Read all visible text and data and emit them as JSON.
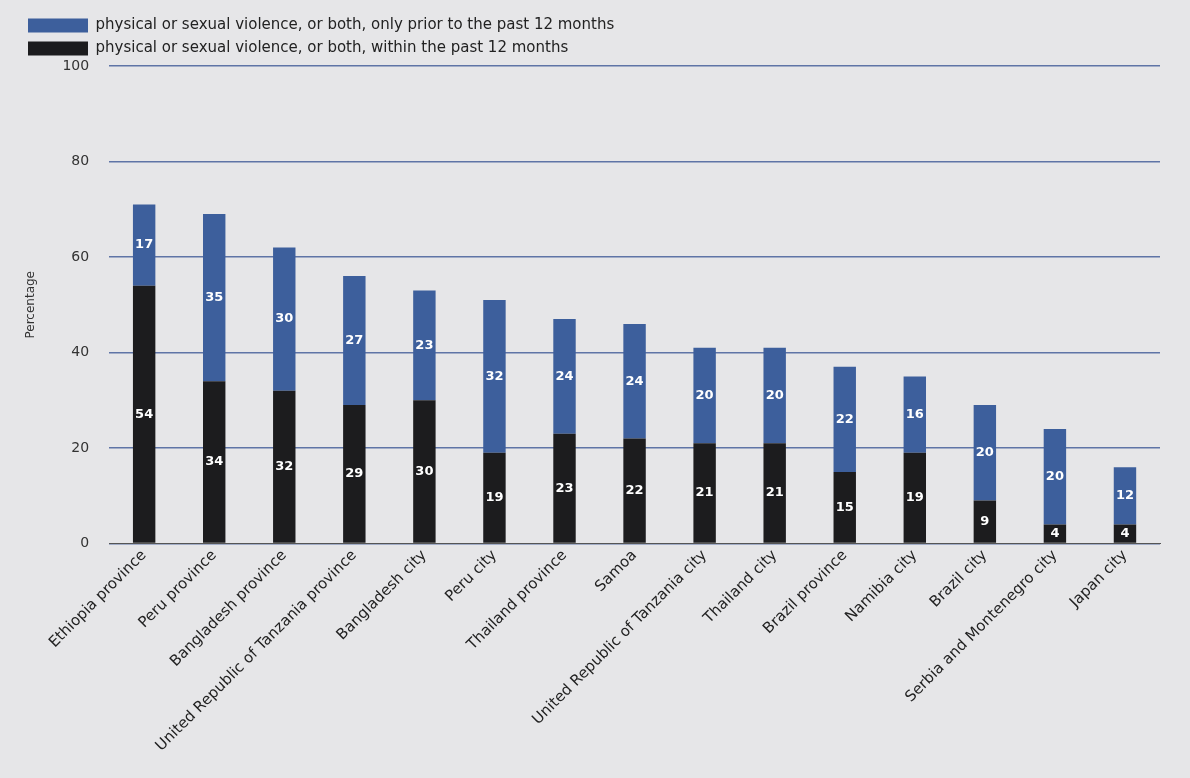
{
  "chart_data": {
    "type": "bar",
    "stacked": true,
    "ylabel": "Percentage",
    "categories": [
      "Ethiopia province",
      "Peru province",
      "Bangladesh province",
      "United Republic of Tanzania province",
      "Bangladesh city",
      "Peru city",
      "Thailand province",
      "Samoa",
      "United Republic of Tanzania city",
      "Thailand city",
      "Brazil province",
      "Namibia city",
      "Brazil city",
      "Serbia and Montenegro city",
      "Japan city"
    ],
    "series": [
      {
        "name": "physical or sexual violence, or both, within the past 12 months",
        "color": "#1c1c1e",
        "values": [
          54,
          34,
          32,
          29,
          30,
          19,
          23,
          22,
          21,
          21,
          15,
          19,
          9,
          4,
          4
        ]
      },
      {
        "name": "physical or sexual violence, or both, only prior to the past 12 months",
        "color": "#3d5f9c",
        "values": [
          17,
          35,
          30,
          27,
          23,
          32,
          24,
          24,
          20,
          20,
          22,
          16,
          20,
          20,
          12
        ]
      }
    ],
    "ylim": [
      0,
      100
    ],
    "yticks": [
      0,
      20,
      40,
      60,
      80,
      100
    ],
    "grid": "y",
    "legend": "top left",
    "data_labels": true
  }
}
